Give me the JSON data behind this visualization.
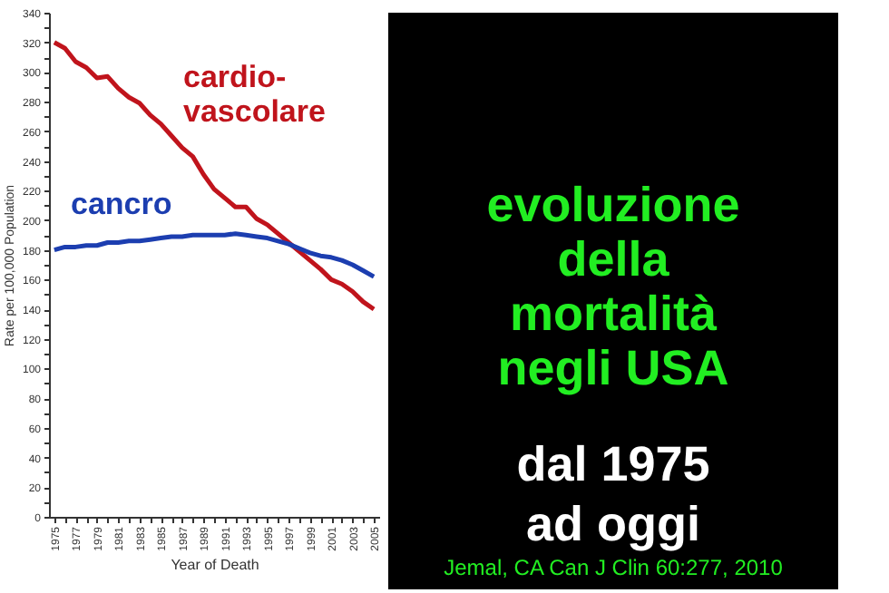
{
  "chart_data": {
    "type": "line",
    "title": "evoluzione\ndella\nmortalità\nnegli USA",
    "subtitle": "dal 1975\nad oggi",
    "xlabel": "Year of Death",
    "ylabel": "Rate per 100,000 Population",
    "x": [
      1975,
      1976,
      1977,
      1978,
      1979,
      1980,
      1981,
      1982,
      1983,
      1984,
      1985,
      1986,
      1987,
      1988,
      1989,
      1990,
      1991,
      1992,
      1993,
      1994,
      1995,
      1996,
      1997,
      1998,
      1999,
      2000,
      2001,
      2002,
      2003,
      2004,
      2005
    ],
    "series": [
      {
        "name": "cardio-\nvascolare",
        "color": "#c0141c",
        "values": [
          320,
          316,
          307,
          303,
          296,
          297,
          289,
          283,
          279,
          271,
          265,
          257,
          249,
          243,
          231,
          221,
          215,
          209,
          209,
          201,
          197,
          191,
          185,
          179,
          173,
          167,
          160,
          157,
          152,
          145,
          140
        ]
      },
      {
        "name": "cancro",
        "color": "#1c3eb0",
        "values": [
          180,
          182,
          182,
          183,
          183,
          185,
          185,
          186,
          186,
          187,
          188,
          189,
          189,
          190,
          190,
          190,
          190,
          191,
          190,
          189,
          188,
          186,
          184,
          181,
          178,
          176,
          175,
          173,
          170,
          166,
          162
        ]
      }
    ],
    "xlim": [
      1974.5,
      2005.5
    ],
    "xticks": [
      1975,
      {
        "value": 1976,
        "label": null
      },
      1977,
      {
        "value": 1978,
        "label": null
      },
      1979,
      {
        "value": 1980,
        "label": null
      },
      1981,
      {
        "value": 1982,
        "label": null
      },
      1983,
      {
        "value": 1984,
        "label": null
      },
      1985,
      {
        "value": 1986,
        "label": null
      },
      1987,
      {
        "value": 1988,
        "label": null
      },
      1989,
      {
        "value": 1990,
        "label": null
      },
      1991,
      {
        "value": 1992,
        "label": null
      },
      1993,
      {
        "value": 1994,
        "label": null
      },
      1995,
      {
        "value": 1996,
        "label": null
      },
      1997,
      {
        "value": 1998,
        "label": null
      },
      1999,
      {
        "value": 2000,
        "label": null
      },
      2001,
      {
        "value": 2002,
        "label": null
      },
      2003,
      {
        "value": 2004,
        "label": null
      },
      2005
    ],
    "ylim": [
      0,
      340
    ],
    "yticks": [
      0,
      {
        "value": 10,
        "label": null
      },
      20,
      {
        "value": 30,
        "label": null
      },
      40,
      {
        "value": 50,
        "label": null
      },
      60,
      {
        "value": 70,
        "label": null
      },
      80,
      {
        "value": 90,
        "label": null
      },
      100,
      {
        "value": 110,
        "label": null
      },
      120,
      {
        "value": 130,
        "label": null
      },
      140,
      {
        "value": 150,
        "label": null
      },
      160,
      {
        "value": 170,
        "label": null
      },
      180,
      {
        "value": 190,
        "label": null
      },
      200,
      {
        "value": 210,
        "label": null
      },
      220,
      {
        "value": 230,
        "label": null
      },
      240,
      {
        "value": 250,
        "label": null
      },
      260,
      {
        "value": 270,
        "label": null
      },
      280,
      {
        "value": 290,
        "label": null
      },
      300,
      {
        "value": 310,
        "label": null
      },
      320,
      {
        "value": 330,
        "label": null
      },
      340
    ],
    "annotations": [
      "Jemal, CA Can J Clin 60:277, 2010"
    ],
    "grid": false,
    "legend": false,
    "marker": "none",
    "line_style": "solid"
  }
}
